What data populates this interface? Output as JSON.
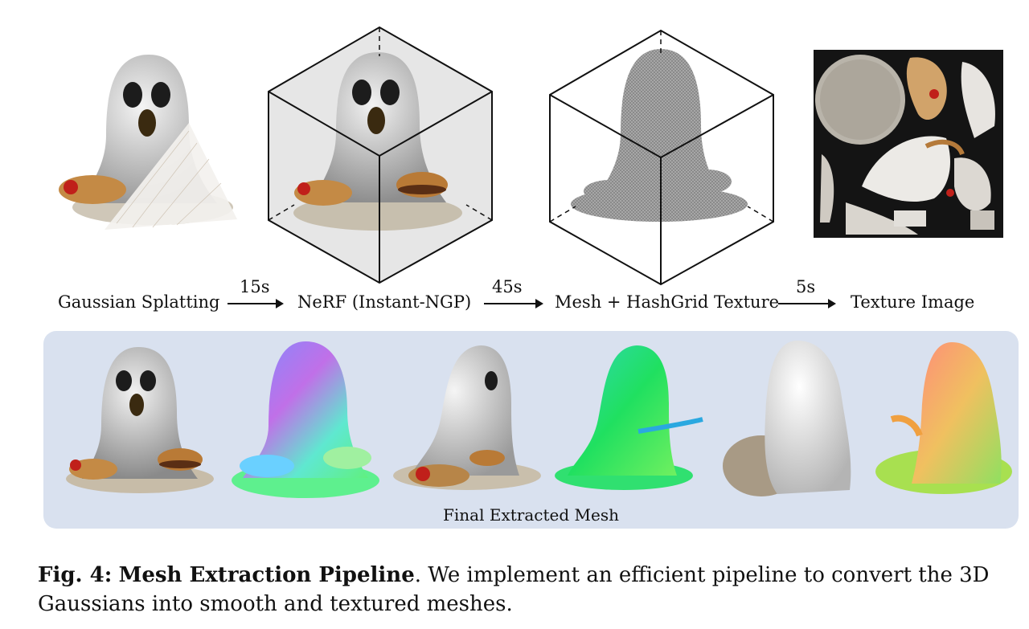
{
  "pipeline": {
    "stages": [
      "Gaussian Splatting",
      "NeRF (Instant-NGP)",
      "Mesh + HashGrid Texture",
      "Texture Image"
    ],
    "times": [
      "15s",
      "45s",
      "5s"
    ]
  },
  "panel": {
    "label": "Final Extracted Mesh"
  },
  "caption": {
    "fig_label": "Fig. 4:",
    "title": "Mesh Extraction Pipeline",
    "text": ". We implement an efficient pipeline to convert the 3D Gaussians into smooth and textured meshes."
  }
}
